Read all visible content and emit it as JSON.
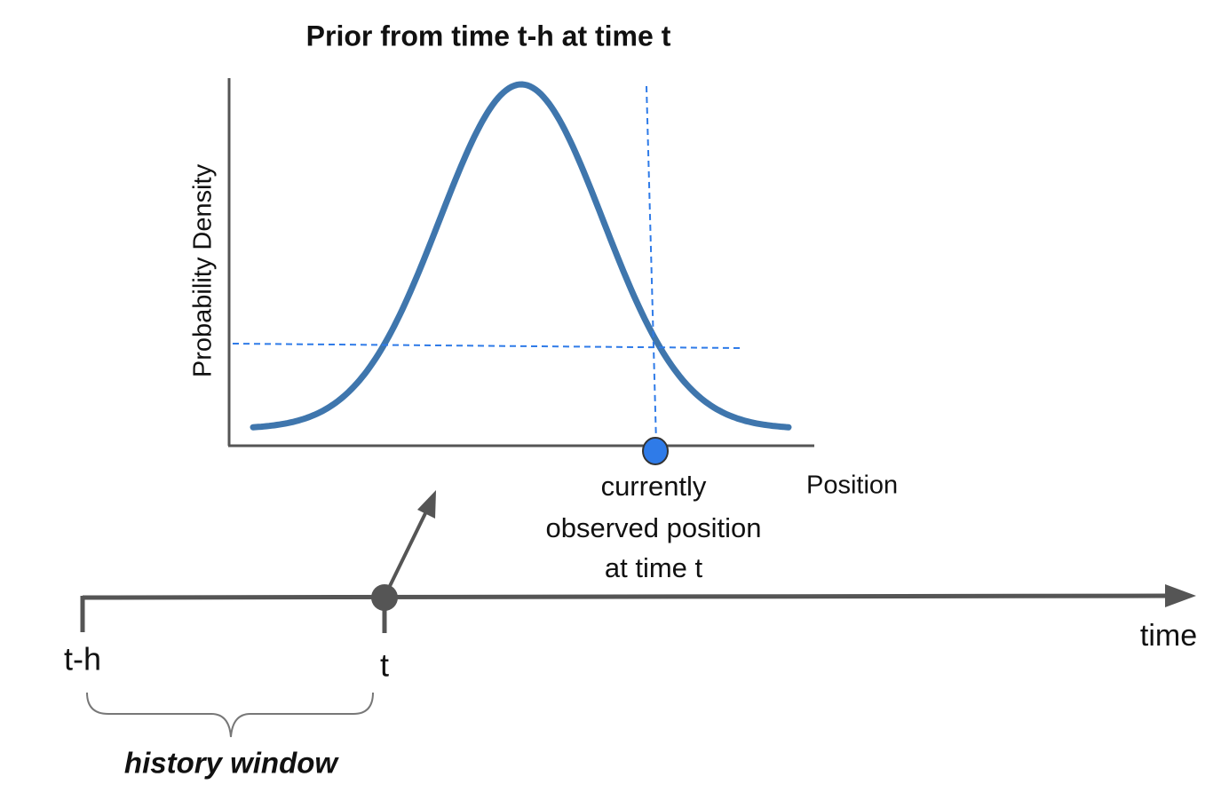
{
  "title": "Prior from time t-h at time t",
  "plot": {
    "y_axis_label": "Probability Density",
    "x_axis_label": "Position",
    "annotation": {
      "lines": [
        "currently",
        "observed position",
        "at time t"
      ]
    }
  },
  "timeline": {
    "start_label": "t-h",
    "current_label": "t",
    "axis_label": "time",
    "window_label": "history window"
  }
}
